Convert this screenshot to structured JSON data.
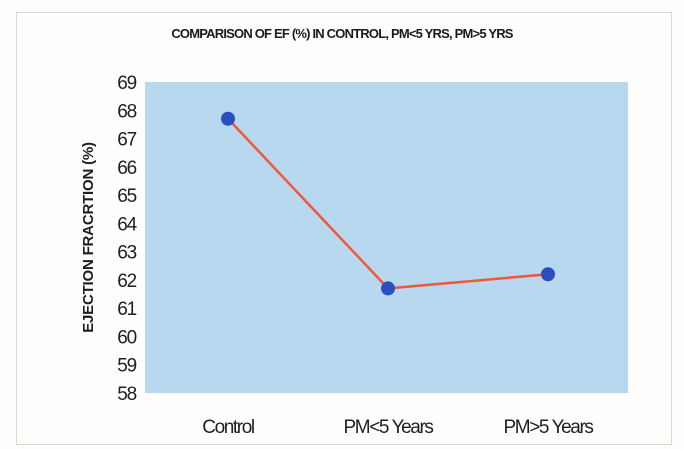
{
  "chart_data": {
    "type": "line",
    "title": "COMPARISON OF EF (%) IN CONTROL, PM<5 YRS, PM>5 YRS",
    "xlabel": "",
    "ylabel": "EJECTION FRACRTION (%)",
    "categories": [
      "Control",
      "PM<5 Years",
      "PM>5 Years"
    ],
    "series": [
      {
        "values": [
          67.7,
          61.7,
          62.2
        ]
      }
    ],
    "ylim": [
      58,
      69
    ],
    "yticks": [
      58,
      59,
      60,
      61,
      62,
      63,
      64,
      65,
      66,
      67,
      68,
      69
    ],
    "grid": false,
    "legend": "none",
    "colors": {
      "plot_background": "#b8d8f0",
      "line": "#f0583a",
      "marker": "#2b4fc0"
    }
  }
}
